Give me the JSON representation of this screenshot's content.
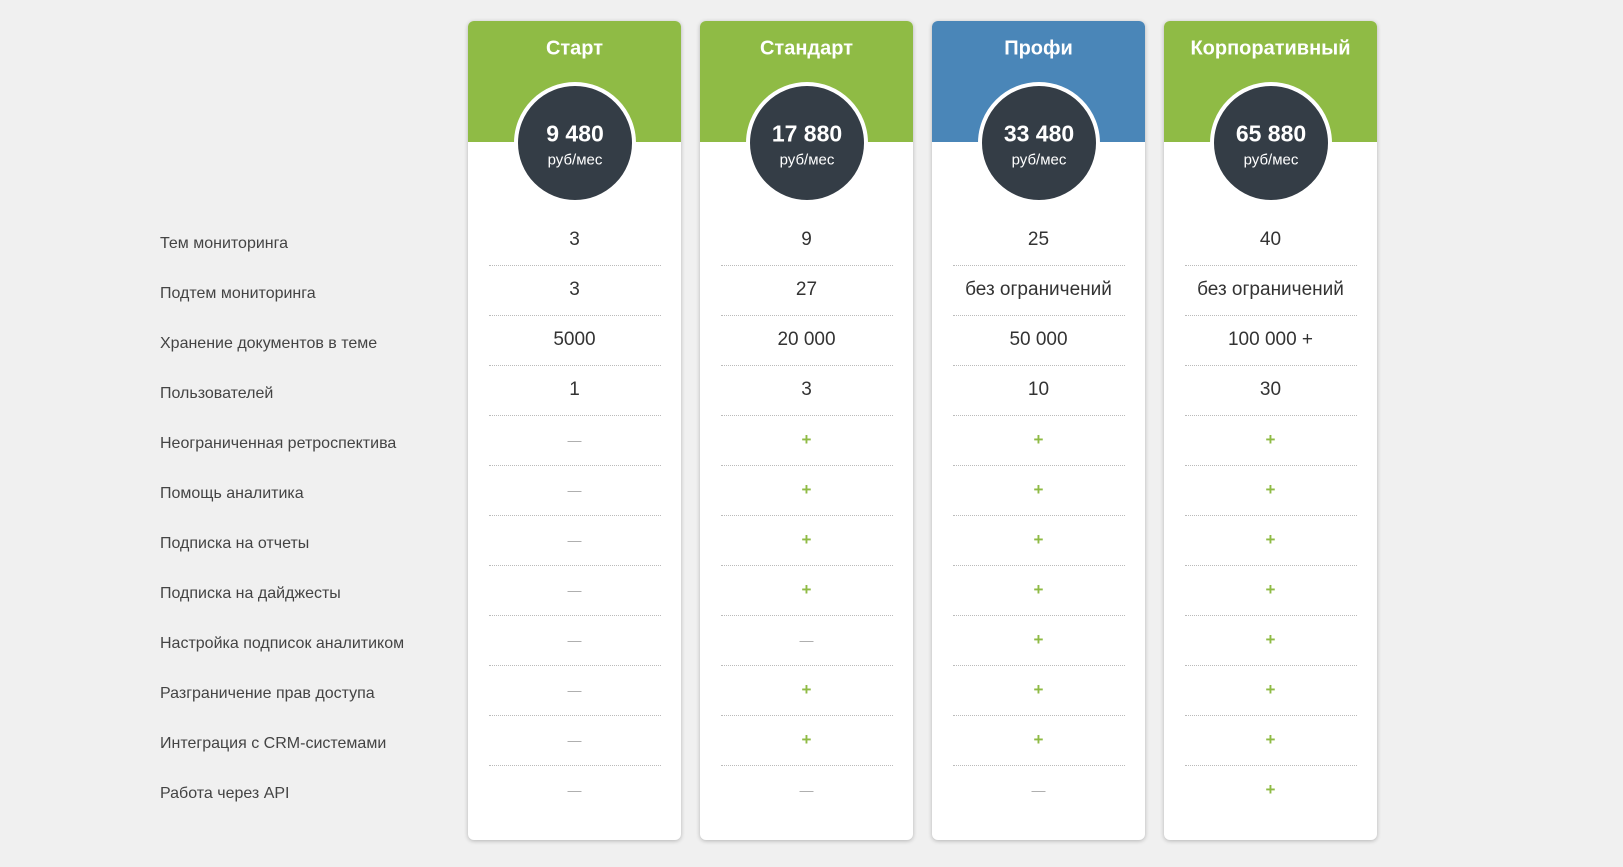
{
  "features": [
    "Тем мониторинга",
    "Подтем мониторинга",
    "Хранение документов в теме",
    "Пользователей",
    "Неограниченная ретроспектива",
    "Помощь аналитика",
    "Подписка на отчеты",
    "Подписка на дайджесты",
    "Настройка подписок аналитиком",
    "Разграничение прав доступа",
    "Интеграция с CRM-системами",
    "Работа через API"
  ],
  "plans": [
    {
      "name": "Старт",
      "color": "#8fbb45",
      "price": "9 480",
      "unit": "руб/мес",
      "values": [
        "3",
        "3",
        "5000",
        "1",
        "—",
        "—",
        "—",
        "—",
        "—",
        "—",
        "—",
        "—"
      ]
    },
    {
      "name": "Стандарт",
      "color": "#8fbb45",
      "price": "17 880",
      "unit": "руб/мес",
      "values": [
        "9",
        "27",
        "20 000",
        "3",
        "+",
        "+",
        "+",
        "+",
        "—",
        "+",
        "+",
        "—"
      ]
    },
    {
      "name": "Профи",
      "color": "#4a86b8",
      "price": "33 480",
      "unit": "руб/мес",
      "values": [
        "25",
        "без ограничений",
        "50 000",
        "10",
        "+",
        "+",
        "+",
        "+",
        "+",
        "+",
        "+",
        "—"
      ]
    },
    {
      "name": "Корпоративный",
      "color": "#8fbb45",
      "price": "65 880",
      "unit": "руб/мес",
      "values": [
        "40",
        "без ограничений",
        "100 000 +",
        "30",
        "+",
        "+",
        "+",
        "+",
        "+",
        "+",
        "+",
        "+"
      ]
    }
  ]
}
